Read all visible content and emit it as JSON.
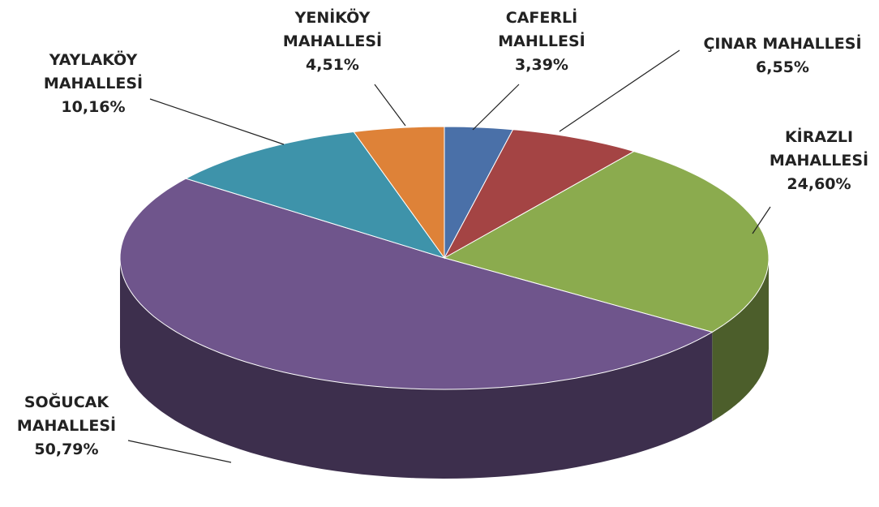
{
  "chart_data": {
    "type": "pie",
    "categories": [
      "CAFERLİ MAHLLESİ",
      "ÇINAR MAHALLESİ",
      "KİRAZLI MAHALLESİ",
      "SOĞUCAK MAHALLESİ",
      "YAYLAKÖY MAHALLESİ",
      "YENİKÖY MAHALLESİ"
    ],
    "values": [
      3.39,
      6.55,
      24.6,
      50.79,
      10.16,
      4.51
    ],
    "value_labels": [
      "3,39%",
      "6,55%",
      "24,60%",
      "50,79%",
      "10,16%",
      "4,51%"
    ],
    "colors": [
      "#4a70a8",
      "#a44444",
      "#8bab4e",
      "#6f558c",
      "#3e93aa",
      "#de8238"
    ]
  }
}
